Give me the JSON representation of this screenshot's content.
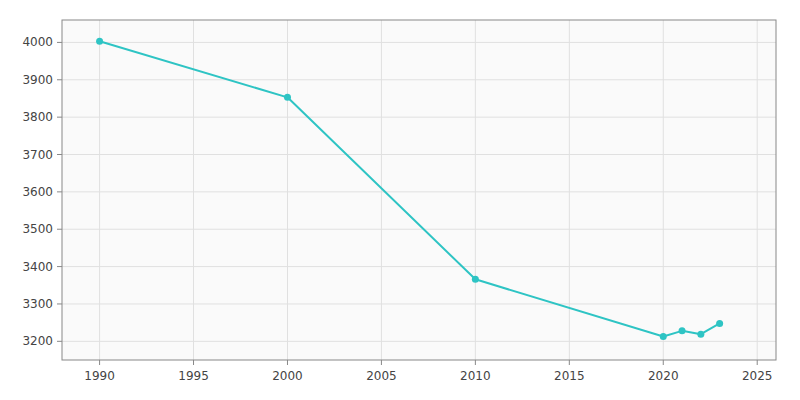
{
  "chart_data": {
    "type": "line",
    "x": [
      1990,
      2000,
      2010,
      2020,
      2021,
      2022,
      2023
    ],
    "values": [
      4003,
      3853,
      3366,
      3213,
      3228,
      3219,
      3248
    ],
    "color": "#2EC4C4",
    "marker": "circle",
    "xlim": [
      1988,
      2026
    ],
    "ylim": [
      3150,
      4060
    ],
    "xticks": [
      1990,
      1995,
      2000,
      2005,
      2010,
      2015,
      2020,
      2025
    ],
    "yticks": [
      3200,
      3300,
      3400,
      3500,
      3600,
      3700,
      3800,
      3900,
      4000
    ],
    "grid": true
  }
}
